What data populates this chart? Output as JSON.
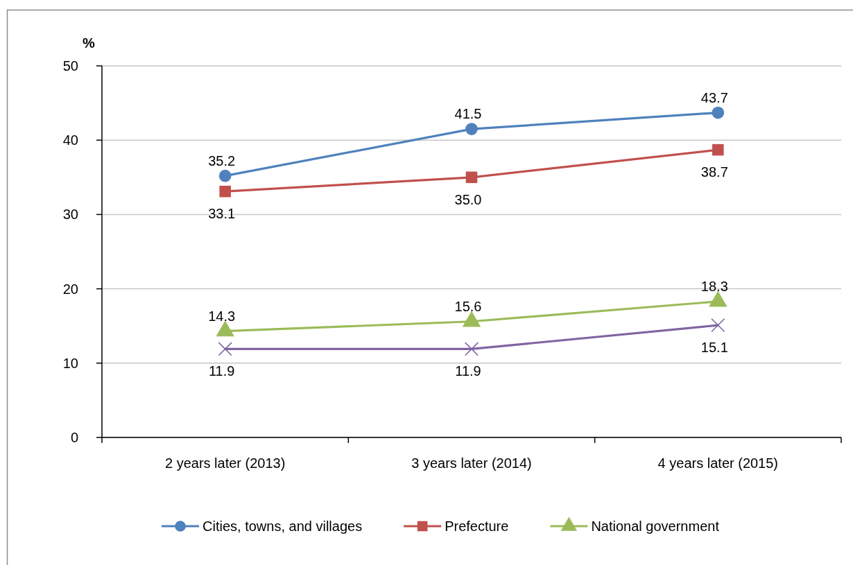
{
  "chart_data": {
    "type": "line",
    "ylabel": "%",
    "categories": [
      "2 years later (2013)",
      "3 years later (2014)",
      "4 years later (2015)"
    ],
    "series": [
      {
        "name": "Cities, towns, and villages",
        "color": "#4f81bd",
        "marker": "circle",
        "values": [
          35.2,
          41.5,
          43.7
        ],
        "value_labels": [
          "35.2",
          "41.5",
          "43.7"
        ]
      },
      {
        "name": "Prefecture",
        "color": "#c0504d",
        "marker": "square",
        "values": [
          33.1,
          35.0,
          38.7
        ],
        "value_labels": [
          "33.1",
          "35.0",
          "38.7"
        ]
      },
      {
        "name": "National government",
        "color": "#9bbb59",
        "marker": "triangle",
        "values": [
          14.3,
          15.6,
          18.3
        ],
        "value_labels": [
          "14.3",
          "15.6",
          "18.3"
        ]
      },
      {
        "color": "#8064a2",
        "marker": "cross",
        "values": [
          11.9,
          11.9,
          15.1
        ],
        "value_labels": [
          "11.9",
          "11.9",
          "15.1"
        ]
      }
    ],
    "ylim": [
      0,
      50
    ],
    "yticks": [
      0,
      10,
      20,
      30,
      40,
      50
    ],
    "grid": "y",
    "legend": "bottom"
  }
}
